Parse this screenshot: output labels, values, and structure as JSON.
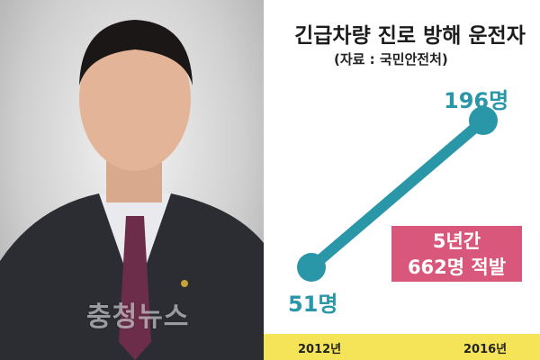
{
  "watermark": "충청뉴스",
  "chart_data": {
    "type": "line",
    "title": "긴급차량 진로 방해 운전자",
    "source": "(자료 : 국민안전처)",
    "categories": [
      "2012년",
      "2016년"
    ],
    "values": [
      51,
      196
    ],
    "data_labels": [
      "51명",
      "196명"
    ],
    "annotation": {
      "line1": "5년간",
      "line2": "662명 적발"
    },
    "colors": {
      "line": "#2a97a8",
      "callout": "#d9577a",
      "axis_band": "#f5e358"
    }
  }
}
